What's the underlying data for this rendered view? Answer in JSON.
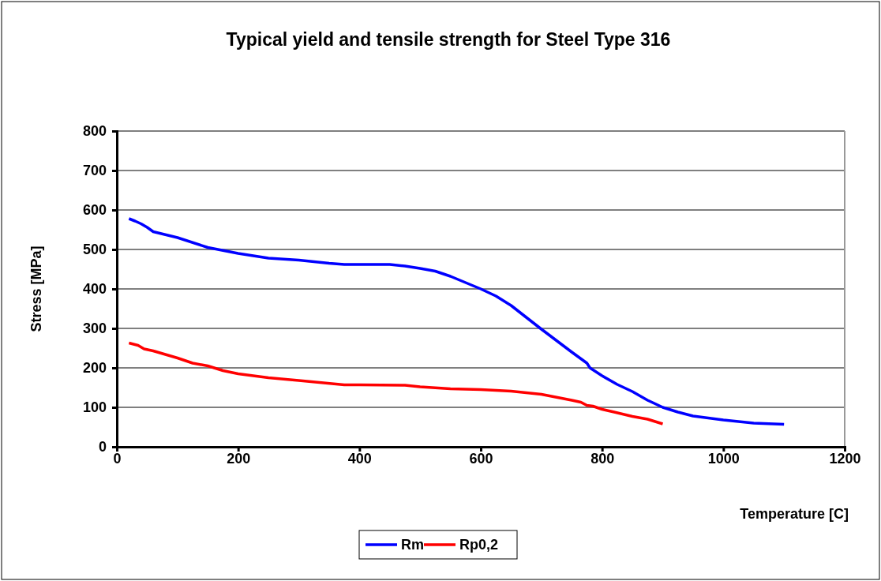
{
  "chart_data": {
    "type": "line",
    "title": "Typical yield and tensile strength for Steel Type 316",
    "xlabel": "Temperature [C]",
    "ylabel": "Stress [MPa]",
    "xlim": [
      0,
      1200
    ],
    "xticks": [
      0,
      200,
      400,
      600,
      800,
      1000,
      1200
    ],
    "ylim": [
      0,
      800
    ],
    "yticks": [
      0,
      100,
      200,
      300,
      400,
      500,
      600,
      700,
      800
    ],
    "grid": "y",
    "legend": "bottom",
    "marker": "none",
    "line_style": "solid",
    "series": [
      {
        "name": "Rm",
        "color": "#0000ff",
        "x": [
          20,
          30,
          40,
          50,
          60,
          100,
          150,
          200,
          250,
          300,
          350,
          375,
          400,
          450,
          475,
          500,
          525,
          550,
          600,
          625,
          650,
          700,
          750,
          775,
          780,
          800,
          825,
          850,
          875,
          900,
          925,
          950,
          1000,
          1050,
          1100
        ],
        "values": [
          578,
          572,
          565,
          556,
          545,
          530,
          505,
          490,
          478,
          473,
          465,
          462,
          462,
          462,
          458,
          452,
          445,
          432,
          400,
          382,
          358,
          298,
          240,
          212,
          200,
          180,
          158,
          140,
          118,
          100,
          88,
          78,
          68,
          60,
          57
        ]
      },
      {
        "name": "Rp0,2",
        "color": "#ff0000",
        "x": [
          20,
          35,
          45,
          60,
          100,
          125,
          150,
          175,
          200,
          250,
          300,
          375,
          400,
          475,
          500,
          550,
          600,
          650,
          700,
          750,
          765,
          775,
          785,
          800,
          820,
          850,
          875,
          900
        ],
        "values": [
          263,
          257,
          248,
          243,
          225,
          212,
          205,
          193,
          185,
          175,
          168,
          157,
          157,
          156,
          152,
          147,
          145,
          141,
          133,
          118,
          113,
          105,
          103,
          95,
          88,
          77,
          70,
          58
        ]
      }
    ]
  }
}
